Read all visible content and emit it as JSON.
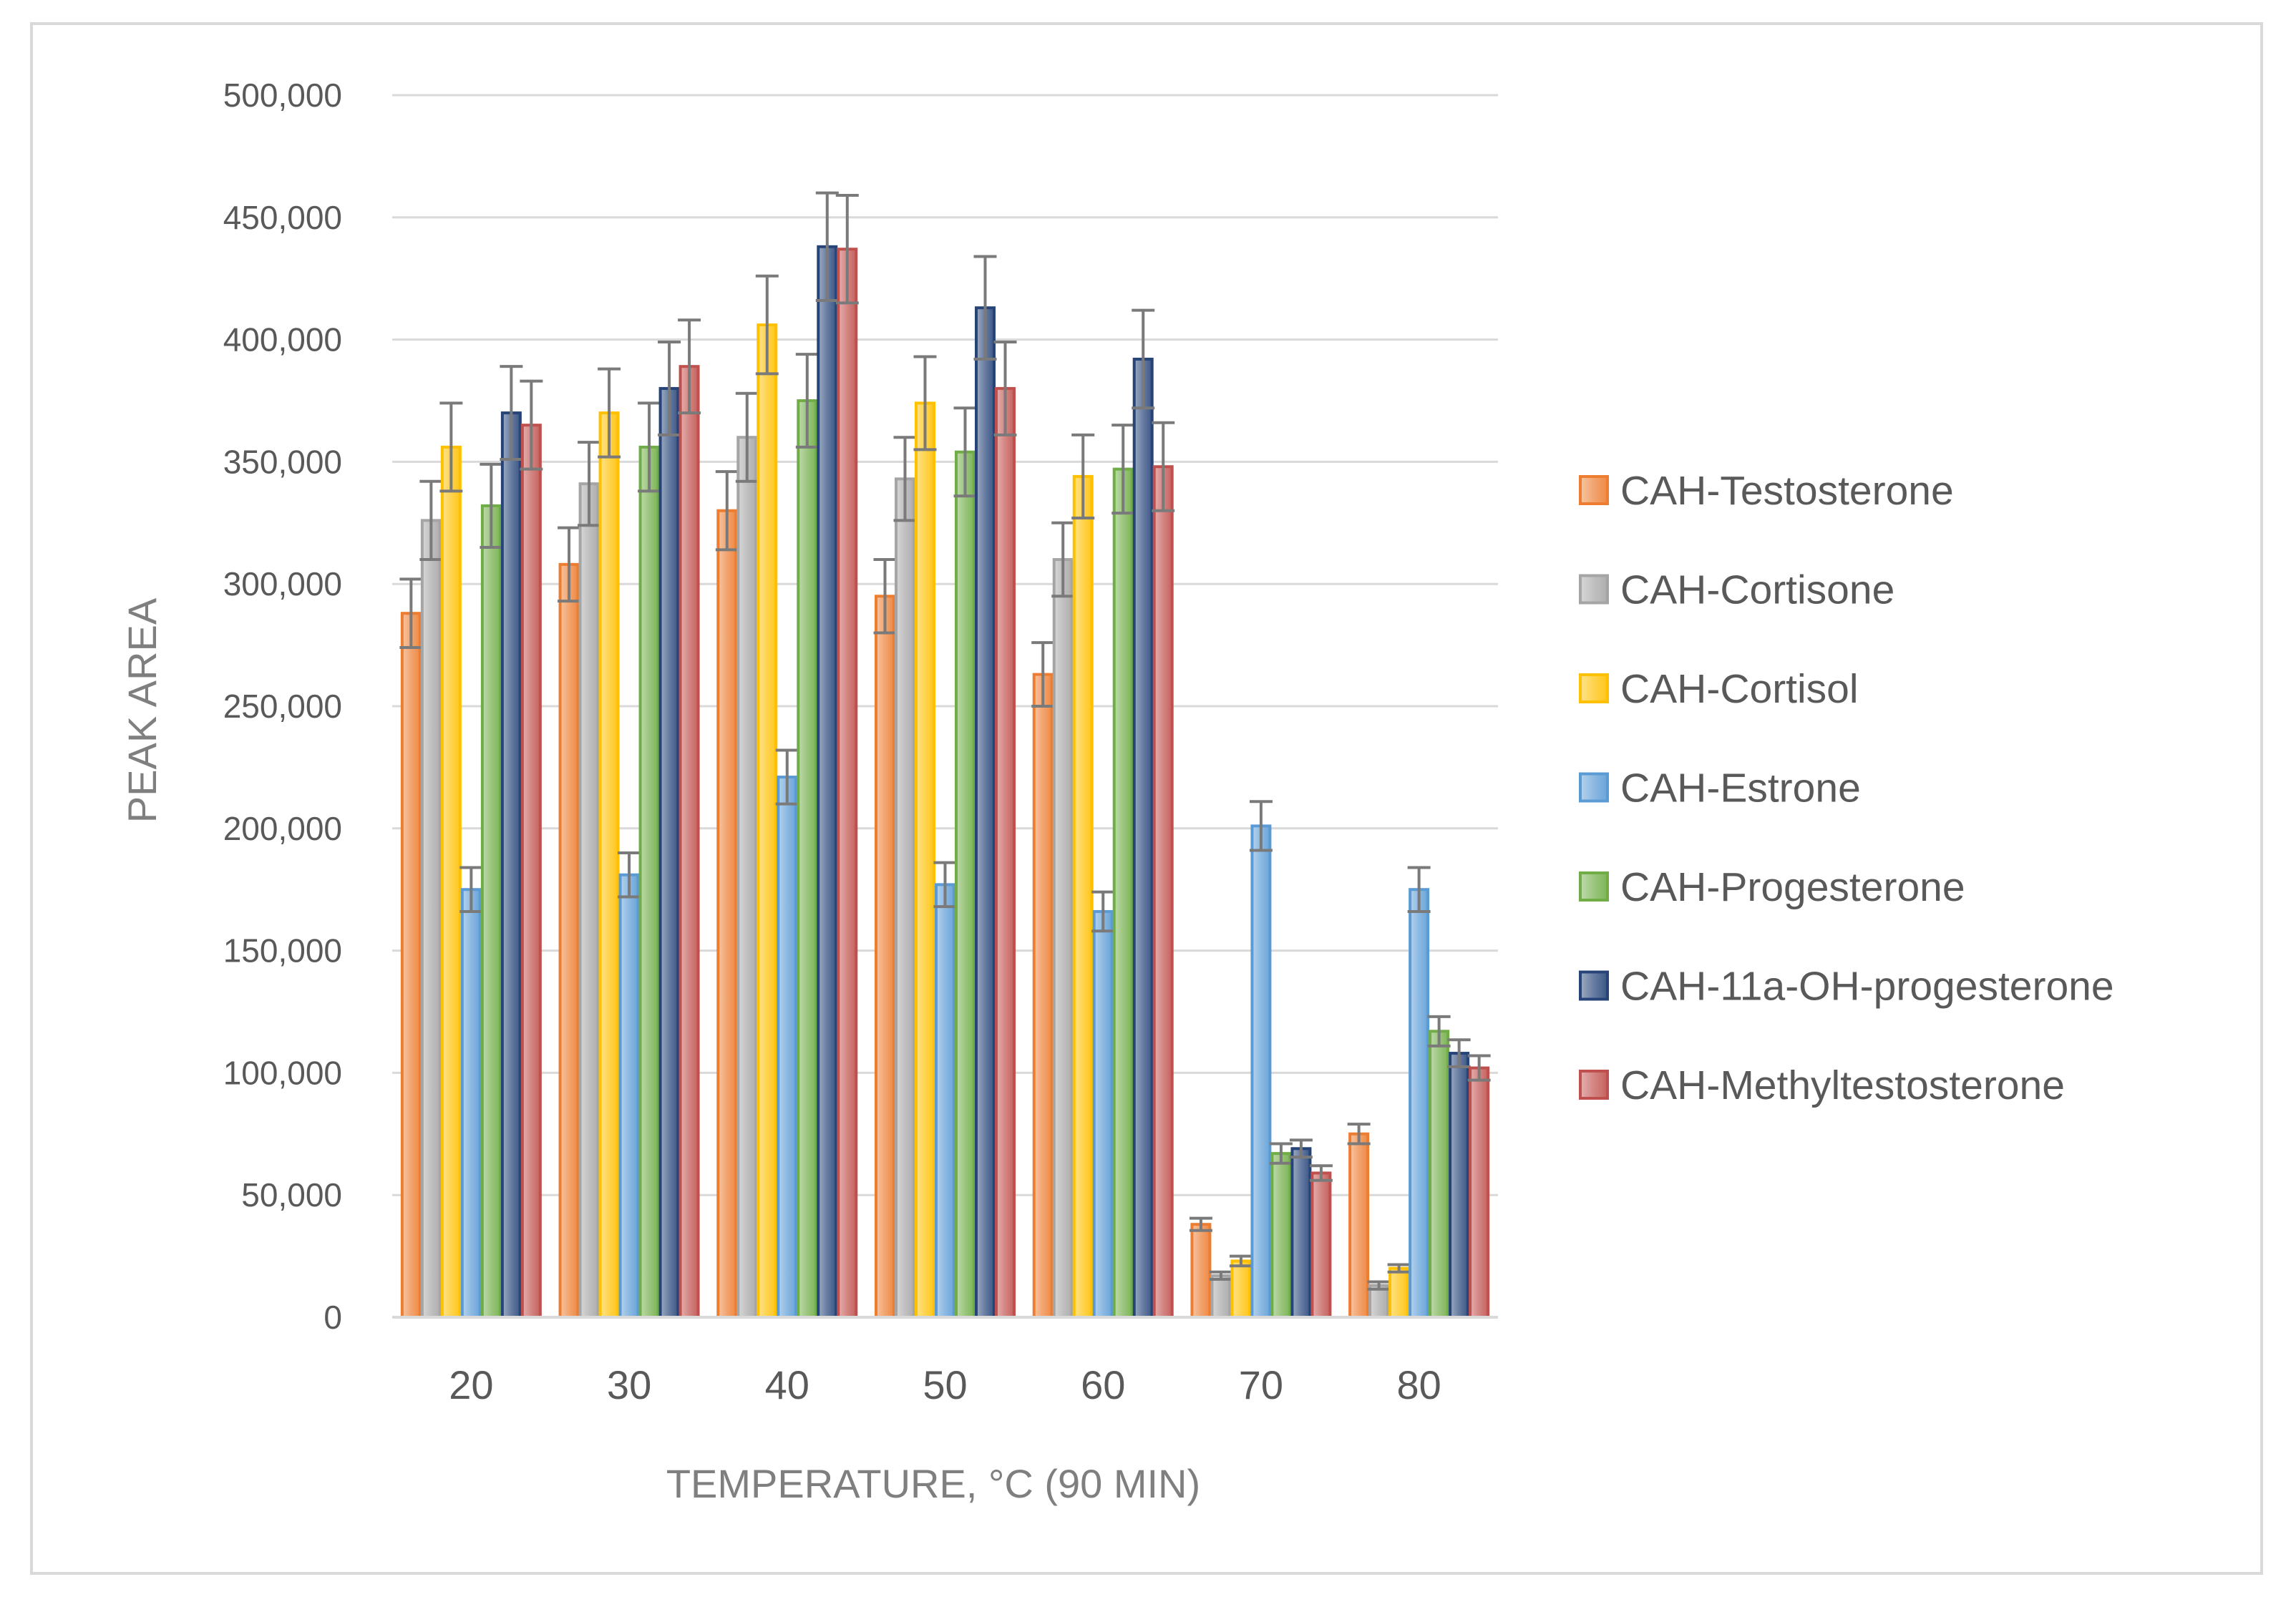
{
  "chart_data": {
    "type": "bar",
    "title": "",
    "xlabel": "TEMPERATURE, °C (90 MIN)",
    "ylabel": "PEAK AREA",
    "ylim": [
      0,
      500000
    ],
    "yticks": [
      0,
      50000,
      100000,
      150000,
      200000,
      250000,
      300000,
      350000,
      400000,
      450000,
      500000
    ],
    "ytick_labels": [
      "0",
      "50,000",
      "100,000",
      "150,000",
      "200,000",
      "250,000",
      "300,000",
      "350,000",
      "400,000",
      "450,000",
      "500,000"
    ],
    "grid": true,
    "legend_position": "right",
    "categories": [
      "20",
      "30",
      "40",
      "50",
      "60",
      "70",
      "80"
    ],
    "series": [
      {
        "name": "CAH-Testosterone",
        "color": "#ed7d31",
        "values": [
          288000,
          308000,
          330000,
          295000,
          263000,
          38000,
          75000
        ],
        "errors": [
          14000,
          15000,
          16000,
          15000,
          13000,
          2500,
          4000
        ]
      },
      {
        "name": "CAH-Cortisone",
        "color": "#a5a5a5",
        "values": [
          326000,
          341000,
          360000,
          343000,
          310000,
          17000,
          13000
        ],
        "errors": [
          16000,
          17000,
          18000,
          17000,
          15000,
          1500,
          1500
        ]
      },
      {
        "name": "CAH-Cortisol",
        "color": "#ffc000",
        "values": [
          356000,
          370000,
          406000,
          374000,
          344000,
          23000,
          20000
        ],
        "errors": [
          18000,
          18000,
          20000,
          19000,
          17000,
          2000,
          1500
        ]
      },
      {
        "name": "CAH-Estrone",
        "color": "#5b9bd5",
        "values": [
          175000,
          181000,
          221000,
          177000,
          166000,
          201000,
          175000
        ],
        "errors": [
          9000,
          9000,
          11000,
          9000,
          8000,
          10000,
          9000
        ]
      },
      {
        "name": "CAH-Progesterone",
        "color": "#70ad47",
        "values": [
          332000,
          356000,
          375000,
          354000,
          347000,
          67000,
          117000
        ],
        "errors": [
          17000,
          18000,
          19000,
          18000,
          18000,
          4000,
          6000
        ]
      },
      {
        "name": "CAH-11a-OH-progesterone",
        "color": "#264478",
        "values": [
          370000,
          380000,
          438000,
          413000,
          392000,
          69000,
          108000
        ],
        "errors": [
          19000,
          19000,
          22000,
          21000,
          20000,
          3500,
          5500
        ]
      },
      {
        "name": "CAH-Methyltestosterone",
        "color": "#c0504d",
        "values": [
          365000,
          389000,
          437000,
          380000,
          348000,
          59000,
          102000
        ],
        "errors": [
          18000,
          19000,
          22000,
          19000,
          18000,
          3000,
          5000
        ]
      }
    ]
  }
}
